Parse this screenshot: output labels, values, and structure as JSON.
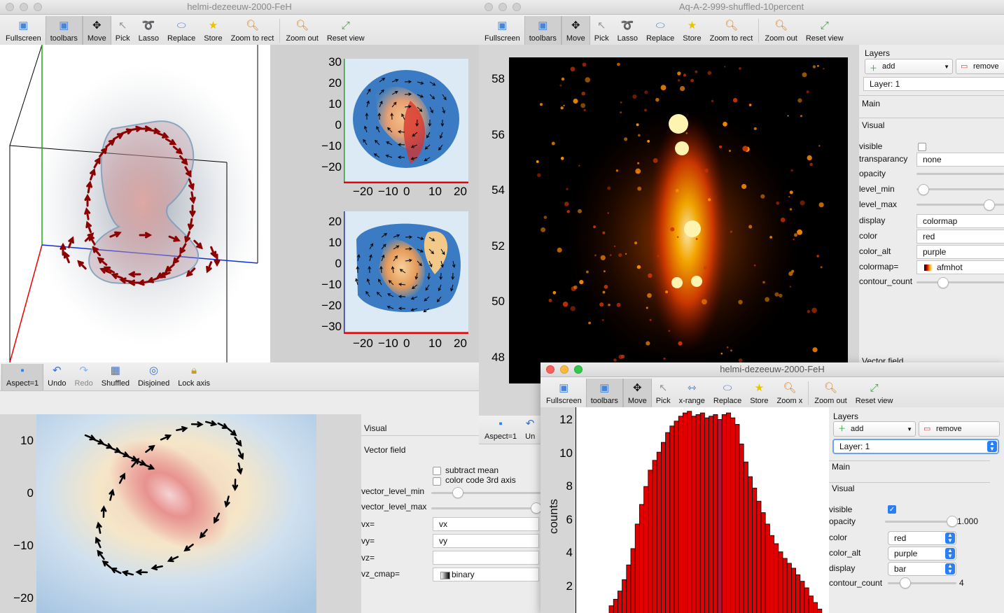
{
  "windows": {
    "win1": {
      "title": "helmi-dezeeuw-2000-FeH"
    },
    "win2": {
      "title": "Aq-A-2-999-shuffled-10percent"
    },
    "win3": {
      "title": "helmi-dezeeuw-2000-FeH"
    }
  },
  "toolbar_main": {
    "fullscreen": "Fullscreen",
    "toolbars": "toolbars",
    "move": "Move",
    "pick": "Pick",
    "lasso": "Lasso",
    "replace": "Replace",
    "store": "Store",
    "zoom_rect": "Zoom to rect",
    "zoom_out": "Zoom out",
    "reset_view": "Reset view"
  },
  "toolbar_hist": {
    "fullscreen": "Fullscreen",
    "toolbars": "toolbars",
    "move": "Move",
    "pick": "Pick",
    "xrange": "x-range",
    "replace": "Replace",
    "store": "Store",
    "zoom_x": "Zoom x",
    "zoom_out": "Zoom out",
    "reset_view": "Reset view"
  },
  "bottom_toolbar": {
    "aspect": "Aspect=1",
    "undo": "Undo",
    "redo": "Redo",
    "shuffled": "Shuffled",
    "disjoined": "Disjoined",
    "lock_axis": "Lock axis",
    "aspect2": "Aspect=1",
    "undo_partial": "Un"
  },
  "plot_small_top": {
    "yticks": [
      "30",
      "20",
      "10",
      "0",
      "−10",
      "−20"
    ],
    "xticks": [
      "−20",
      "−10",
      "0",
      "10",
      "20"
    ]
  },
  "plot_small_bottom": {
    "yticks": [
      "20",
      "10",
      "0",
      "−10",
      "−20",
      "−30"
    ],
    "xticks": [
      "−20",
      "−10",
      "0",
      "10",
      "20"
    ]
  },
  "plot_vector": {
    "yticks": [
      "10",
      "0",
      "−10",
      "−20"
    ]
  },
  "plot_density": {
    "yticks": [
      "58",
      "56",
      "54",
      "52",
      "50",
      "48"
    ]
  },
  "histogram": {
    "ylabel": "counts",
    "yticks": [
      "12",
      "10",
      "8",
      "6",
      "4",
      "2"
    ],
    "colors": {
      "bar": "#e00000",
      "highlight": "#b0143c"
    }
  },
  "chart_data": {
    "type": "bar",
    "title": "",
    "xlabel": "",
    "ylabel": "counts",
    "ylim": [
      0,
      12.4
    ],
    "values": [
      0.7,
      1.1,
      1.6,
      2.3,
      3.2,
      4.2,
      5.7,
      6.9,
      8.0,
      9.0,
      9.6,
      10.1,
      10.7,
      11.3,
      11.7,
      12.0,
      12.3,
      12.5,
      12.6,
      12.3,
      12.4,
      12.5,
      12.2,
      12.3,
      12.4,
      12.1,
      12.4,
      12.5,
      12.2,
      11.8,
      10.6,
      9.5,
      8.6,
      7.9,
      7.1,
      6.4,
      5.7,
      5.0,
      4.5,
      4.0,
      3.6,
      3.3,
      3.0,
      2.6,
      2.2,
      1.8,
      1.3,
      0.9,
      0.5
    ],
    "highlight_index": 25
  },
  "vector_panel": {
    "visual": "Visual",
    "vector_field": "Vector field",
    "subtract_mean": "subtract mean",
    "color_code": "color code 3rd axis",
    "vector_level_min": "vector_level_min",
    "vector_level_max": "vector_level_max",
    "vx_label": "vx=",
    "vx_value": "vx",
    "vy_label": "vy=",
    "vy_value": "vy",
    "vz_label": "vz=",
    "vz_value": "",
    "vz_cmap_label": "vz_cmap=",
    "vz_cmap_value": "binary"
  },
  "layers_panel_2": {
    "layers": "Layers",
    "add": "add",
    "remove": "remove",
    "layer": "Layer: 1",
    "main": "Main",
    "visual": "Visual",
    "visible": "visible",
    "transparancy": "transparancy",
    "transparancy_value": "none",
    "opacity": "opacity",
    "level_min": "level_min",
    "level_max": "level_max",
    "display": "display",
    "display_value": "colormap",
    "color": "color",
    "color_value": "red",
    "color_alt": "color_alt",
    "color_alt_value": "purple",
    "colormap": "colormap=",
    "colormap_value": "afmhot",
    "contour_count": "contour_count",
    "vector_field": "Vector field"
  },
  "layers_panel_3": {
    "layers": "Layers",
    "add": "add",
    "remove": "remove",
    "layer": "Layer: 1",
    "main": "Main",
    "visual": "Visual",
    "visible": "visible",
    "opacity": "opacity",
    "opacity_value": "1.000",
    "color": "color",
    "color_value": "red",
    "color_alt": "color_alt",
    "color_alt_value": "purple",
    "display": "display",
    "display_value": "bar",
    "contour_count": "contour_count",
    "contour_count_value": "4"
  }
}
